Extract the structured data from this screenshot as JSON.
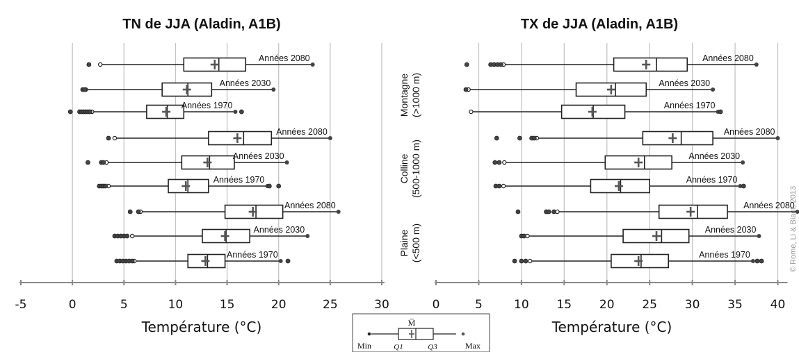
{
  "copyright": "© Rome, Li & Biaot, 2013",
  "zones": [
    {
      "label": "Montagne",
      "sub": "(>1000 m)"
    },
    {
      "label": "Colline",
      "sub": "(500-1000 m)"
    },
    {
      "label": "Plaine",
      "sub": "(<500 m)"
    }
  ],
  "legend": {
    "mean": "M̅",
    "min": "Min",
    "q1": "Q1",
    "q3": "Q3",
    "max": "Max"
  },
  "chart_data": [
    {
      "type": "box",
      "title": "TN de JJA (Aladin, A1B)",
      "xlabel": "Température (°C)",
      "xlim": [
        -5,
        30
      ],
      "ticks": [
        -5,
        0,
        5,
        10,
        15,
        20,
        25,
        30
      ],
      "grid": true,
      "series": [
        {
          "zone": "Montagne",
          "label": "Années 2080",
          "min": 2.7,
          "q1": 10.8,
          "median": 14.2,
          "mean": 13.8,
          "q3": 16.8,
          "max": 23.3,
          "outliers": [
            1.6
          ]
        },
        {
          "zone": "Montagne",
          "label": "Années 2030",
          "min": 1.3,
          "q1": 8.7,
          "median": 11.2,
          "mean": 11.1,
          "q3": 13.5,
          "max": 19.5,
          "outliers": [
            1.0,
            1.2
          ]
        },
        {
          "zone": "Montagne",
          "label": "Années 1970",
          "min": 1.9,
          "q1": 7.2,
          "median": 9.2,
          "mean": 9.1,
          "q3": 10.8,
          "max": 15.8,
          "outliers": [
            -0.2,
            0.7,
            0.9,
            1.1,
            1.3,
            1.5,
            1.7,
            16.4
          ]
        },
        {
          "zone": "Colline",
          "label": "Années 2080",
          "min": 4.1,
          "q1": 13.2,
          "median": 16.6,
          "mean": 16.0,
          "q3": 19.3,
          "max": 25.0,
          "outliers": [
            3.5
          ]
        },
        {
          "zone": "Colline",
          "label": "Années 2030",
          "min": 3.3,
          "q1": 10.6,
          "median": 13.3,
          "mean": 13.1,
          "q3": 15.7,
          "max": 20.8,
          "outliers": [
            1.5,
            2.8,
            3.0
          ]
        },
        {
          "zone": "Colline",
          "label": "Années 1970",
          "min": 3.5,
          "q1": 9.3,
          "median": 11.2,
          "mean": 11.0,
          "q3": 13.2,
          "max": 18.9,
          "outliers": [
            2.6,
            2.8,
            3.0,
            3.2,
            19.1,
            20.0
          ]
        },
        {
          "zone": "Plaine",
          "label": "Années 2080",
          "min": 6.6,
          "q1": 14.8,
          "median": 17.8,
          "mean": 17.5,
          "q3": 20.4,
          "max": 25.8,
          "outliers": [
            5.6,
            6.4
          ]
        },
        {
          "zone": "Plaine",
          "label": "Années 2030",
          "min": 5.8,
          "q1": 12.6,
          "median": 14.9,
          "mean": 14.8,
          "q3": 17.2,
          "max": 22.8,
          "outliers": [
            4.1,
            4.4,
            4.7,
            5.0,
            5.3
          ]
        },
        {
          "zone": "Plaine",
          "label": "Années 1970",
          "min": 6.0,
          "q1": 11.2,
          "median": 13.1,
          "mean": 12.9,
          "q3": 14.8,
          "max": 20.2,
          "outliers": [
            4.3,
            4.6,
            4.9,
            5.2,
            5.5,
            5.8,
            20.9
          ]
        }
      ]
    },
    {
      "type": "box",
      "title": "TX de JJA (Aladin, A1B)",
      "xlabel": "Température (°C)",
      "xlim": [
        0,
        43
      ],
      "ticks": [
        0,
        5,
        10,
        15,
        20,
        25,
        30,
        35,
        40
      ],
      "grid": true,
      "series": [
        {
          "zone": "Montagne",
          "label": "Années 2080",
          "min": 7.9,
          "q1": 20.8,
          "median": 25.8,
          "mean": 24.6,
          "q3": 29.4,
          "max": 37.5,
          "outliers": [
            3.6,
            6.4,
            6.8,
            7.2,
            7.6
          ]
        },
        {
          "zone": "Montagne",
          "label": "Années 2030",
          "min": 3.8,
          "q1": 16.4,
          "median": 21.0,
          "mean": 20.5,
          "q3": 24.6,
          "max": 32.4,
          "outliers": [
            3.5
          ]
        },
        {
          "zone": "Montagne",
          "label": "Années 1970",
          "min": 4.1,
          "q1": 14.7,
          "median": 18.4,
          "mean": 18.3,
          "q3": 22.1,
          "max": 33.0,
          "outliers": [
            33.3
          ]
        },
        {
          "zone": "Colline",
          "label": "Années 2080",
          "min": 11.8,
          "q1": 24.2,
          "median": 28.7,
          "mean": 27.7,
          "q3": 32.4,
          "max": 40.0,
          "outliers": [
            7.1,
            9.8,
            11.2,
            11.5
          ]
        },
        {
          "zone": "Colline",
          "label": "Années 2030",
          "min": 8.0,
          "q1": 19.8,
          "median": 24.4,
          "mean": 23.7,
          "q3": 27.6,
          "max": 35.9,
          "outliers": [
            6.9,
            7.4
          ]
        },
        {
          "zone": "Colline",
          "label": "Années 1970",
          "min": 7.9,
          "q1": 18.1,
          "median": 21.6,
          "mean": 21.4,
          "q3": 25.0,
          "max": 35.6,
          "outliers": [
            7.0,
            7.4,
            36.0
          ]
        },
        {
          "zone": "Plaine",
          "label": "Années 2080",
          "min": 14.2,
          "q1": 26.1,
          "median": 30.6,
          "mean": 29.8,
          "q3": 34.1,
          "max": 42.3,
          "outliers": [
            9.6,
            12.9,
            13.2,
            13.8
          ]
        },
        {
          "zone": "Plaine",
          "label": "Années 2030",
          "min": 10.7,
          "q1": 21.9,
          "median": 26.4,
          "mean": 25.8,
          "q3": 29.6,
          "max": 37.8,
          "outliers": [
            10.0,
            10.3
          ]
        },
        {
          "zone": "Plaine",
          "label": "Années 1970",
          "min": 11.0,
          "q1": 20.5,
          "median": 24.0,
          "mean": 23.7,
          "q3": 27.2,
          "max": 37.1,
          "outliers": [
            9.2,
            10.0,
            10.5,
            37.6,
            38.1
          ]
        }
      ]
    }
  ]
}
